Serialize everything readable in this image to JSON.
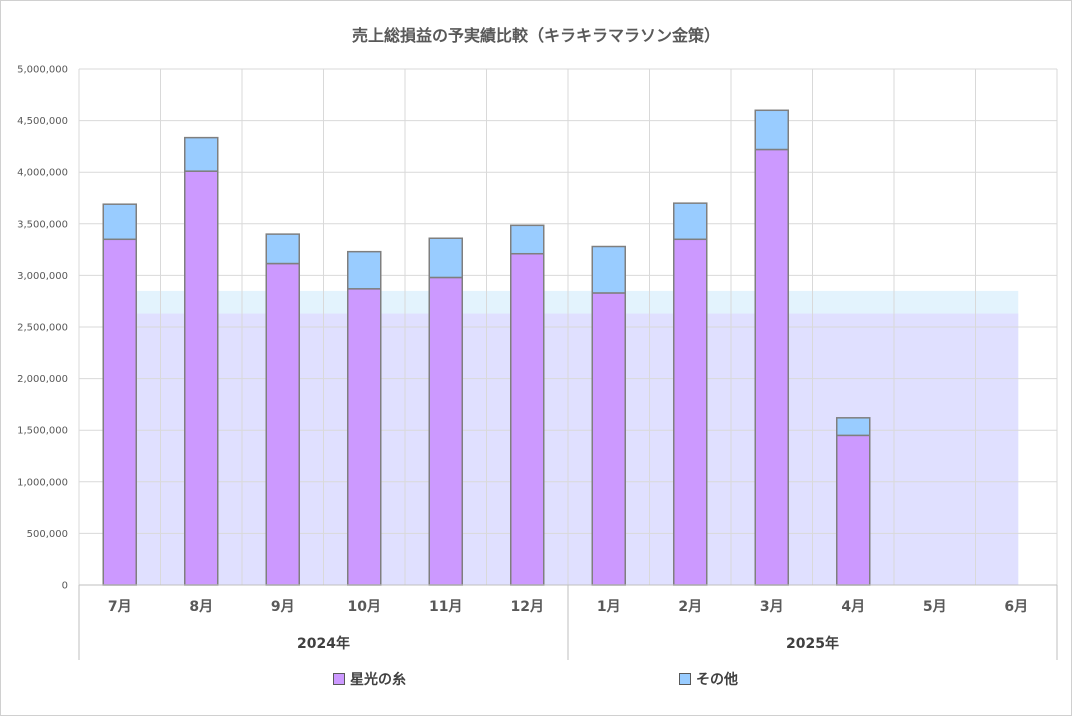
{
  "chart_data": {
    "type": "bar",
    "stacked": true,
    "title": "売上総損益の予実績比較（キラキラマラソン金策）",
    "categories": [
      "7月",
      "8月",
      "9月",
      "10月",
      "11月",
      "12月",
      "1月",
      "2月",
      "3月",
      "4月",
      "5月",
      "6月"
    ],
    "year_groups": [
      {
        "label": "2024年",
        "span": 6
      },
      {
        "label": "2025年",
        "span": 6
      }
    ],
    "series": [
      {
        "name": "星光の糸",
        "color": "#CC99FF",
        "values": [
          3350000,
          4010000,
          3115000,
          2870000,
          2980000,
          3210000,
          2830000,
          3350000,
          4220000,
          1450000,
          null,
          null
        ]
      },
      {
        "name": "その他",
        "color": "#99CCFF",
        "values": [
          340000,
          325000,
          285000,
          360000,
          380000,
          275000,
          450000,
          350000,
          380000,
          170000,
          null,
          null
        ]
      }
    ],
    "background_bands": [
      {
        "value": 2850000,
        "color": "#E3F3FD"
      },
      {
        "value": 2630000,
        "color": "#E0E0FF"
      }
    ],
    "ylim": [
      0,
      5000000
    ],
    "yticks": [
      "0",
      "500,000",
      "1,000,000",
      "1,500,000",
      "2,000,000",
      "2,500,000",
      "3,000,000",
      "3,500,000",
      "4,000,000",
      "4,500,000",
      "5,000,000"
    ],
    "grid": true,
    "legend_position": "bottom"
  }
}
